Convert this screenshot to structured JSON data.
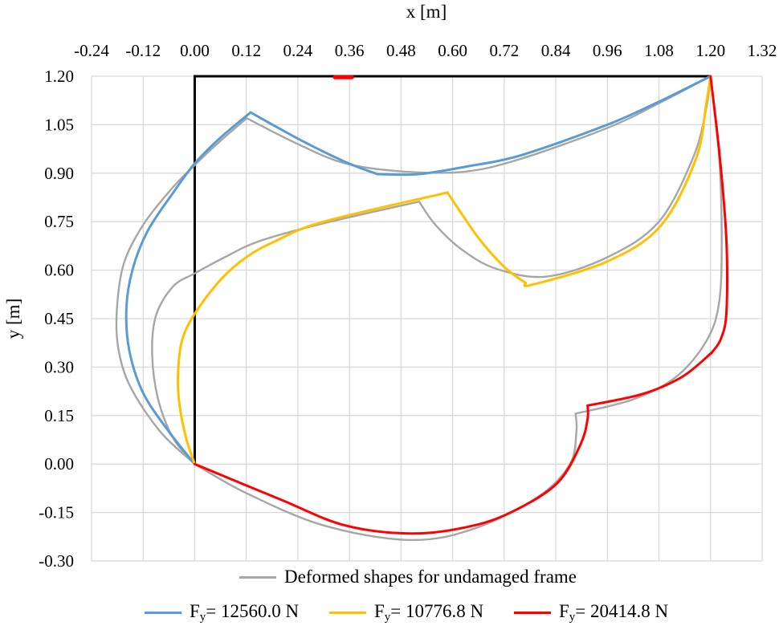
{
  "chart_data": {
    "type": "line",
    "xlabel": "x [m]",
    "ylabel": "y [m]",
    "xlim": [
      -0.24,
      1.32
    ],
    "ylim": [
      -0.3,
      1.2
    ],
    "xticks": [
      "-0.24",
      "-0.12",
      "0.00",
      "0.12",
      "0.24",
      "0.36",
      "0.48",
      "0.60",
      "0.72",
      "0.84",
      "0.96",
      "1.08",
      "1.20",
      "1.32"
    ],
    "yticks": [
      "1.20",
      "1.05",
      "0.90",
      "0.75",
      "0.60",
      "0.45",
      "0.30",
      "0.15",
      "0.00",
      "-0.15",
      "-0.30"
    ],
    "grid": true,
    "legend_placement": "bottom",
    "frame": {
      "name": "Undeformed frame",
      "color": "#000000",
      "points": [
        [
          0,
          0
        ],
        [
          0,
          1.2
        ],
        [
          1.2,
          1.2
        ]
      ]
    },
    "series": [
      {
        "name": "Deformed shapes for undamaged frame",
        "legend": {
          "prefix": "Deformed shapes for undamaged frame"
        },
        "color": "#A6A6A6",
        "segments": [
          [
            [
              0,
              0
            ],
            [
              -0.08,
              0.1
            ],
            [
              -0.15,
              0.24
            ],
            [
              -0.178,
              0.36
            ],
            [
              -0.181,
              0.48
            ],
            [
              -0.165,
              0.62
            ],
            [
              -0.12,
              0.74
            ],
            [
              -0.055,
              0.85
            ],
            [
              0,
              0.925
            ],
            [
              0.06,
              1.0
            ],
            [
              0.121,
              1.07
            ]
          ],
          [
            [
              0.121,
              1.07
            ],
            [
              0.24,
              0.99
            ],
            [
              0.351,
              0.93
            ],
            [
              0.487,
              0.905
            ],
            [
              0.63,
              0.905
            ],
            [
              0.76,
              0.945
            ],
            [
              0.96,
              1.04
            ],
            [
              1.078,
              1.115
            ],
            [
              1.2,
              1.2
            ]
          ],
          [
            [
              0,
              0
            ],
            [
              -0.05,
              0.08
            ],
            [
              -0.085,
              0.2
            ],
            [
              -0.099,
              0.34
            ],
            [
              -0.09,
              0.46
            ],
            [
              -0.05,
              0.55
            ],
            [
              0,
              0.59
            ],
            [
              0.07,
              0.64
            ],
            [
              0.151,
              0.69
            ],
            [
              0.3,
              0.745
            ],
            [
              0.522,
              0.812
            ]
          ],
          [
            [
              0.522,
              0.812
            ],
            [
              0.56,
              0.74
            ],
            [
              0.62,
              0.665
            ],
            [
              0.7,
              0.605
            ],
            [
              0.817,
              0.58
            ],
            [
              0.96,
              0.64
            ],
            [
              1.08,
              0.75
            ],
            [
              1.16,
              0.95
            ],
            [
              1.19,
              1.1
            ],
            [
              1.2,
              1.2
            ]
          ],
          [
            [
              1.2,
              1.2
            ],
            [
              1.22,
              0.95
            ],
            [
              1.226,
              0.7
            ],
            [
              1.22,
              0.5
            ],
            [
              1.19,
              0.38
            ],
            [
              1.12,
              0.27
            ],
            [
              1.02,
              0.2
            ],
            [
              0.886,
              0.156
            ]
          ],
          [
            [
              0.886,
              0.156
            ],
            [
              0.888,
              0.1
            ],
            [
              0.873,
              0.0
            ],
            [
              0.8,
              -0.1
            ],
            [
              0.65,
              -0.2
            ],
            [
              0.5,
              -0.235
            ],
            [
              0.3,
              -0.19
            ],
            [
              0.12,
              -0.09
            ],
            [
              0,
              0
            ]
          ]
        ]
      },
      {
        "name": "Fy= 12560.0 N",
        "legend": {
          "prefix": "F",
          "sub": "y",
          "suffix": "= 12560.0 N"
        },
        "color": "#5B9BD5",
        "segments": [
          [
            [
              0,
              0
            ],
            [
              -0.06,
              0.1
            ],
            [
              -0.12,
              0.22
            ],
            [
              -0.152,
              0.35
            ],
            [
              -0.159,
              0.48
            ],
            [
              -0.145,
              0.6
            ],
            [
              -0.11,
              0.72
            ],
            [
              -0.05,
              0.84
            ],
            [
              0,
              0.93
            ],
            [
              0.06,
              1.01
            ],
            [
              0.13,
              1.088
            ]
          ],
          [
            [
              0.13,
              1.088
            ],
            [
              0.25,
              1.0
            ],
            [
              0.35,
              0.935
            ],
            [
              0.425,
              0.897
            ]
          ],
          [
            [
              0.425,
              0.897
            ],
            [
              0.52,
              0.897
            ],
            [
              0.63,
              0.92
            ],
            [
              0.76,
              0.956
            ],
            [
              0.96,
              1.05
            ],
            [
              1.078,
              1.12
            ],
            [
              1.2,
              1.2
            ]
          ]
        ]
      },
      {
        "name": "Fy= 10776.8 N",
        "legend": {
          "prefix": "F",
          "sub": "y",
          "suffix": "= 10776.8 N"
        },
        "color": "#FFC000",
        "segments": [
          [
            [
              0,
              0
            ],
            [
              -0.02,
              0.08
            ],
            [
              -0.035,
              0.18
            ],
            [
              -0.039,
              0.27
            ],
            [
              -0.03,
              0.38
            ],
            [
              0,
              0.465
            ],
            [
              0.06,
              0.57
            ],
            [
              0.12,
              0.64
            ],
            [
              0.188,
              0.69
            ],
            [
              0.3,
              0.75
            ],
            [
              0.588,
              0.84
            ]
          ],
          [
            [
              0.588,
              0.84
            ],
            [
              0.66,
              0.7
            ],
            [
              0.72,
              0.61
            ],
            [
              0.77,
              0.56
            ]
          ],
          [
            [
              0.77,
              0.56
            ],
            [
              0.786,
              0.555
            ],
            [
              0.96,
              0.627
            ],
            [
              1.084,
              0.737
            ],
            [
              1.166,
              0.944
            ],
            [
              1.19,
              1.115
            ],
            [
              1.2,
              1.2
            ]
          ]
        ]
      },
      {
        "name": "Fy= 20414.8 N",
        "legend": {
          "prefix": "F",
          "sub": "y",
          "suffix": "= 20414.8 N"
        },
        "color": "#FF0000",
        "segments": [
          [
            [
              1.2,
              1.2
            ],
            [
              1.222,
              0.944
            ],
            [
              1.237,
              0.69
            ],
            [
              1.237,
              0.47
            ],
            [
              1.224,
              0.387
            ],
            [
              1.203,
              0.345
            ]
          ],
          [
            [
              1.203,
              0.345
            ],
            [
              1.134,
              0.27
            ],
            [
              1.04,
              0.216
            ],
            [
              0.914,
              0.181
            ]
          ],
          [
            [
              0.914,
              0.181
            ],
            [
              0.914,
              0.14
            ],
            [
              0.898,
              0.062
            ],
            [
              0.845,
              -0.057
            ],
            [
              0.75,
              -0.14
            ],
            [
              0.65,
              -0.19
            ],
            [
              0.51,
              -0.215
            ],
            [
              0.35,
              -0.19
            ],
            [
              0.2,
              -0.11
            ],
            [
              0,
              0
            ]
          ],
          [
            [
              0.326,
              1.197
            ],
            [
              0.366,
              1.197
            ]
          ]
        ]
      }
    ]
  }
}
